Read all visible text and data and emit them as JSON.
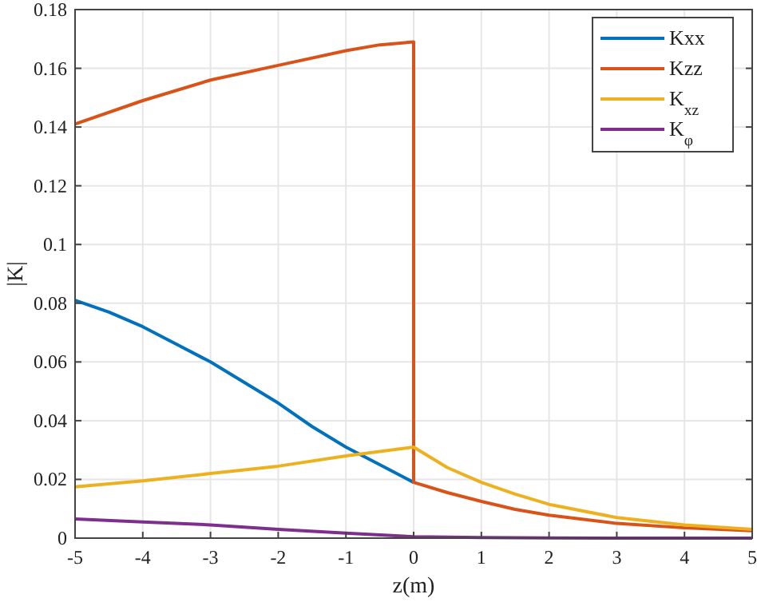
{
  "chart_data": {
    "type": "line",
    "xlabel": "z(m)",
    "ylabel": "|K|",
    "xlim": [
      -5,
      5
    ],
    "ylim": [
      0,
      0.18
    ],
    "xticks": [
      -5,
      -4,
      -3,
      -2,
      -1,
      0,
      1,
      2,
      3,
      4,
      5
    ],
    "yticks": [
      0,
      0.02,
      0.04,
      0.06,
      0.08,
      0.1,
      0.12,
      0.14,
      0.16,
      0.18
    ],
    "grid": true,
    "legend": "top right",
    "line_style": "solid",
    "marker": "none",
    "series": [
      {
        "name": "Kxx",
        "color": "#0072bd",
        "x": [
          -5,
          -4.5,
          -4,
          -3.5,
          -3,
          -2.5,
          -2,
          -1.5,
          -1,
          -0.5,
          0
        ],
        "values": [
          0.081,
          0.077,
          0.072,
          0.066,
          0.06,
          0.053,
          0.046,
          0.038,
          0.031,
          0.025,
          0.019
        ]
      },
      {
        "name": "Kzz",
        "color": "#d95319",
        "x": [
          -5,
          -4,
          -3,
          -2,
          -1,
          -0.5,
          0,
          0,
          0.5,
          1,
          1.5,
          2,
          3,
          4,
          5
        ],
        "values": [
          0.141,
          0.149,
          0.156,
          0.161,
          0.166,
          0.168,
          0.169,
          0.019,
          0.0155,
          0.0125,
          0.0098,
          0.0078,
          0.005,
          0.0035,
          0.0025
        ]
      },
      {
        "name": "K$_{xz}$",
        "color": "#edb120",
        "x": [
          -5,
          -4,
          -3,
          -2,
          -1,
          0,
          0.5,
          1,
          1.5,
          2,
          3,
          4,
          5
        ],
        "values": [
          0.0175,
          0.0195,
          0.022,
          0.0245,
          0.028,
          0.031,
          0.024,
          0.019,
          0.015,
          0.0115,
          0.007,
          0.0045,
          0.003
        ]
      },
      {
        "name": "K$_{φ}$",
        "color": "#7e2f8e",
        "x": [
          -5,
          -4,
          -3,
          -2,
          -1,
          0,
          1,
          2,
          3,
          4,
          5
        ],
        "values": [
          0.0065,
          0.0055,
          0.0045,
          0.003,
          0.0017,
          0.0005,
          0.0002,
          0.0001,
          0,
          0,
          0
        ]
      }
    ]
  }
}
